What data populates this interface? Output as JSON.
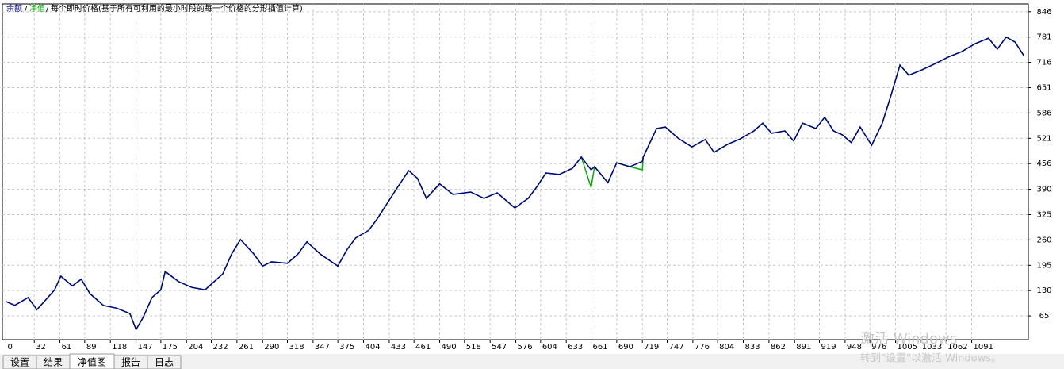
{
  "chart_data": {
    "type": "line",
    "legend_note": "每个即时价格(基于所有可利用的最小时段的每一个价格的分形插值计算)",
    "x": [
      0,
      10,
      25,
      35,
      45,
      55,
      62,
      75,
      85,
      95,
      110,
      125,
      140,
      147,
      155,
      165,
      175,
      180,
      195,
      210,
      225,
      245,
      255,
      265,
      280,
      290,
      300,
      318,
      330,
      340,
      355,
      375,
      385,
      395,
      410,
      420,
      440,
      455,
      465,
      475,
      490,
      505,
      525,
      540,
      555,
      575,
      590,
      600,
      610,
      625,
      640,
      650,
      661,
      665,
      680,
      690,
      705,
      719,
      720,
      735,
      745,
      760,
      775,
      790,
      800,
      815,
      830,
      845,
      855,
      865,
      880,
      890,
      900,
      915,
      925,
      935,
      945,
      955,
      965,
      978,
      990,
      1000,
      1010,
      1020,
      1035,
      1050,
      1065,
      1080,
      1095,
      1110,
      1120,
      1130,
      1140,
      1150
    ],
    "series": [
      {
        "name": "净值",
        "color": "#00b000",
        "values": [
          102,
          92,
          112,
          81,
          106,
          132,
          167,
          142,
          159,
          122,
          92,
          85,
          71,
          30,
          61,
          112,
          132,
          179,
          153,
          138,
          132,
          173,
          224,
          261,
          224,
          193,
          204,
          200,
          224,
          255,
          224,
          193,
          234,
          265,
          285,
          316,
          387,
          438,
          418,
          367,
          404,
          377,
          383,
          367,
          381,
          342,
          367,
          397,
          432,
          428,
          444,
          473,
          395,
          448,
          407,
          458,
          448,
          440,
          473,
          546,
          550,
          520,
          499,
          518,
          485,
          505,
          520,
          540,
          560,
          534,
          540,
          514,
          560,
          546,
          575,
          540,
          530,
          510,
          550,
          503,
          560,
          632,
          709,
          683,
          697,
          713,
          730,
          744,
          764,
          778,
          750,
          781,
          768,
          733
        ]
      },
      {
        "name": "余额",
        "color": "#00008b",
        "values": [
          102,
          92,
          112,
          81,
          106,
          132,
          167,
          142,
          159,
          122,
          92,
          85,
          71,
          30,
          61,
          112,
          132,
          179,
          153,
          138,
          132,
          173,
          224,
          261,
          224,
          193,
          204,
          200,
          224,
          255,
          224,
          193,
          234,
          265,
          285,
          316,
          387,
          438,
          418,
          367,
          404,
          377,
          383,
          367,
          381,
          342,
          367,
          397,
          432,
          428,
          444,
          473,
          440,
          448,
          407,
          458,
          448,
          462,
          473,
          546,
          550,
          520,
          499,
          518,
          485,
          505,
          520,
          540,
          560,
          534,
          540,
          514,
          560,
          546,
          575,
          540,
          530,
          510,
          550,
          503,
          560,
          632,
          709,
          683,
          697,
          713,
          730,
          744,
          764,
          778,
          750,
          781,
          768,
          733
        ]
      }
    ],
    "xlim": [
      -4,
      1155
    ],
    "xticks": [
      0,
      32,
      61,
      89,
      118,
      147,
      175,
      204,
      232,
      261,
      290,
      318,
      347,
      375,
      404,
      433,
      461,
      490,
      518,
      547,
      576,
      604,
      633,
      661,
      690,
      719,
      747,
      776,
      804,
      833,
      862,
      891,
      919,
      948,
      976,
      1005,
      1033,
      1062,
      1091
    ],
    "ylim": [
      4,
      866
    ],
    "yticks": [
      65,
      130,
      195,
      260,
      325,
      390,
      456,
      521,
      586,
      651,
      716,
      781,
      846
    ],
    "grid": true
  },
  "tabs": [
    "设置",
    "结果",
    "净值图",
    "报告",
    "日志"
  ],
  "watermark": {
    "line1": "激活 Windows",
    "line2": "转到\"设置\"以激活 Windows。"
  }
}
